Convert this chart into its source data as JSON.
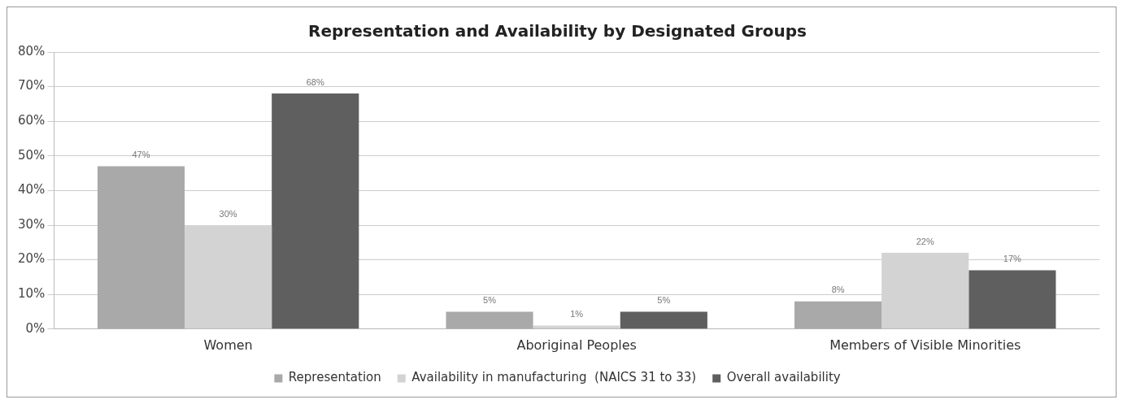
{
  "chart_data": {
    "type": "bar",
    "title": "Representation and Availability by Designated Groups",
    "categories": [
      "Women",
      "Aboriginal Peoples",
      "Members of Visible Minorities"
    ],
    "series": [
      {
        "name": "Representation",
        "color": "#a9a9a9",
        "values": [
          47,
          5,
          8
        ],
        "value_labels": [
          "47%",
          "5%",
          "8%"
        ]
      },
      {
        "name": "Availability in manufacturing  (NAICS 31 to 33)",
        "color": "#d3d3d3",
        "values": [
          30,
          1,
          22
        ],
        "value_labels": [
          "30%",
          "1%",
          "22%"
        ]
      },
      {
        "name": "Overall availability",
        "color": "#5f5f5f",
        "values": [
          68,
          5,
          17
        ],
        "value_labels": [
          "68%",
          "5%",
          "17%"
        ]
      }
    ],
    "ylim": [
      0,
      80
    ],
    "yticks": [
      {
        "value": 0,
        "label": "0%"
      },
      {
        "value": 10,
        "label": "10%"
      },
      {
        "value": 20,
        "label": "20%"
      },
      {
        "value": 30,
        "label": "30%"
      },
      {
        "value": 40,
        "label": "40%"
      },
      {
        "value": 50,
        "label": "50%"
      },
      {
        "value": 60,
        "label": "60%"
      },
      {
        "value": 70,
        "label": "70%"
      },
      {
        "value": 80,
        "label": "80%"
      }
    ],
    "grid": "y",
    "legend": "bottom"
  }
}
